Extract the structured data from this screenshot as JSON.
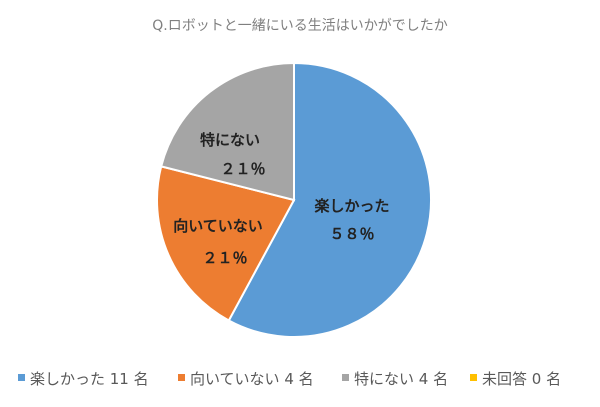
{
  "chart_data": {
    "type": "pie",
    "title": "Q.ロボットと一緒にいる生活はいかがでしたか",
    "slices": [
      {
        "name": "楽しかった",
        "value": 11,
        "pct_label": "５８％",
        "legend": "楽しかった 11 名",
        "color": "#5b9bd5"
      },
      {
        "name": "向いていない",
        "value": 4,
        "pct_label": "２１％",
        "legend": "向いていない 4 名",
        "color": "#ed7d31"
      },
      {
        "name": "特にない",
        "value": 4,
        "pct_label": "２１％",
        "legend": "特にない 4 名",
        "color": "#a5a5a5"
      },
      {
        "name": "未回答",
        "value": 0,
        "pct_label": "",
        "legend": "未回答 0 名",
        "color": "#ffc000"
      }
    ],
    "start": "top",
    "direction": "clockwise",
    "legend_position": "bottom"
  }
}
